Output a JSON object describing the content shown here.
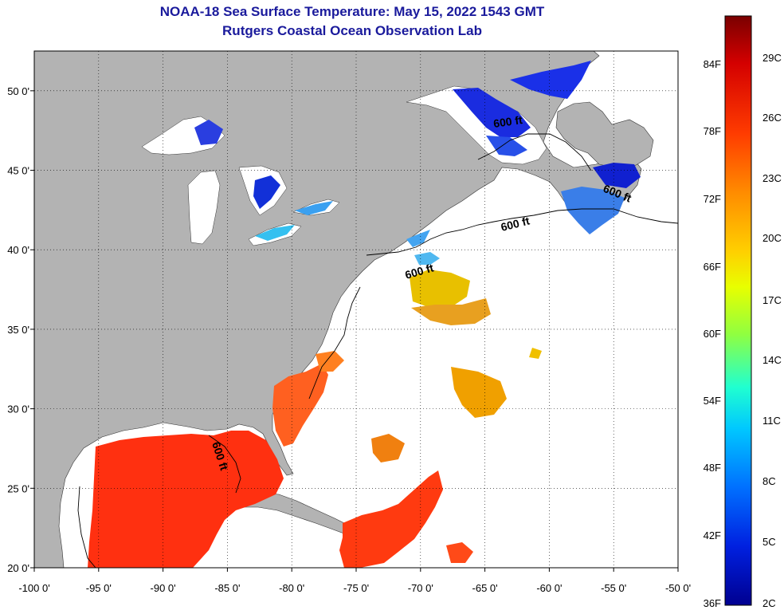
{
  "header": {
    "title": "NOAA-18 Sea Surface Temperature:  May 15, 2022 1543 GMT",
    "subtitle": "Rutgers Coastal Ocean Observation Lab"
  },
  "map": {
    "lon_range": [
      -100,
      -50
    ],
    "lat_range": [
      20,
      52.5
    ],
    "x_ticks": [
      "-100 0'",
      "-95 0'",
      "-90 0'",
      "-85 0'",
      "-80 0'",
      "-75 0'",
      "-70 0'",
      "-65 0'",
      "-60 0'",
      "-55 0'",
      "-50 0'"
    ],
    "y_ticks": [
      "50 0'",
      "45 0'",
      "40 0'",
      "35 0'",
      "30 0'",
      "25 0'",
      "20 0'"
    ],
    "contour_label": "600 ft",
    "colors": {
      "land": "#b3b3b3",
      "ocean_nodata": "#ffffff",
      "grid": "#000000"
    }
  },
  "colorbar": {
    "fahrenheit_labels": [
      "84F",
      "78F",
      "72F",
      "66F",
      "60F",
      "54F",
      "48F",
      "42F",
      "36F"
    ],
    "celsius_labels": [
      "29C",
      "26C",
      "23C",
      "20C",
      "17C",
      "14C",
      "11C",
      "8C",
      "5C",
      "2C"
    ],
    "gradient": [
      "#7a0000",
      "#d40000",
      "#ff3c00",
      "#ff8c00",
      "#ffd000",
      "#e8ff00",
      "#90ff40",
      "#20ffd0",
      "#00c8ff",
      "#0070ff",
      "#0020e0",
      "#000090"
    ]
  }
}
